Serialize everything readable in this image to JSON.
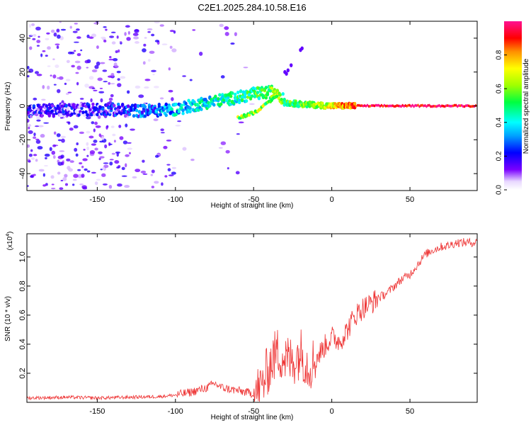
{
  "title": "C2E1.2025.284.10.58.E16",
  "chart_data": [
    {
      "type": "heatmap",
      "title": "C2E1.2025.284.10.58.E16",
      "xlabel": "Height of straight line (km)",
      "ylabel": "Frequency (Hz)",
      "xlim": [
        -195,
        93
      ],
      "ylim": [
        -50,
        50
      ],
      "xticks": [
        -150,
        -100,
        -50,
        0,
        50
      ],
      "xtick_labels": [
        "-150",
        "-100",
        "-50",
        "0",
        "50"
      ],
      "yticks": [
        -40,
        -20,
        0,
        20,
        40
      ],
      "ytick_labels": [
        "-40",
        "-20",
        "0",
        "20",
        "40"
      ],
      "colorbar": {
        "label": "Normalized spectral amplitude",
        "range": [
          0,
          1
        ],
        "ticks": [
          0.0,
          0.2,
          0.4,
          0.6,
          0.8
        ],
        "tick_labels": [
          "0.0",
          "0.2",
          "0.4",
          "0.6",
          "0.8"
        ]
      },
      "ridge": {
        "description_points_x": [
          -195,
          -150,
          -120,
          -100,
          -80,
          -60,
          -50,
          -40,
          -35,
          -30,
          -20,
          -10,
          0,
          10,
          20,
          93
        ],
        "frequency_hz": [
          -3,
          -2,
          -3,
          -2,
          2,
          5,
          7,
          8,
          9,
          2,
          1,
          0.5,
          0,
          0,
          0,
          0
        ],
        "amplitude": [
          0.15,
          0.15,
          0.25,
          0.35,
          0.4,
          0.45,
          0.5,
          0.55,
          0.6,
          0.5,
          0.55,
          0.6,
          0.7,
          0.8,
          0.95,
          0.98
        ]
      },
      "branch": {
        "x": [
          -60,
          -50,
          -40,
          -33
        ],
        "frequency_hz": [
          -7,
          -4,
          2,
          8
        ]
      }
    },
    {
      "type": "line",
      "xlabel": "Height of straight line (km)",
      "ylabel": "SNR (10 * v/v)",
      "multiplier": "(x10",
      "multiplier_exp": "4",
      "multiplier_close": ")",
      "xlim": [
        -195,
        93
      ],
      "ylim": [
        0,
        1.16
      ],
      "xticks": [
        -150,
        -100,
        -50,
        0,
        50
      ],
      "xtick_labels": [
        "-150",
        "-100",
        "-50",
        "0",
        "50"
      ],
      "yticks": [
        0.2,
        0.4,
        0.6,
        0.8,
        1.0
      ],
      "ytick_labels": [
        "0.2",
        "0.4",
        "0.6",
        "0.8",
        "1.0"
      ],
      "series": [
        {
          "name": "SNR",
          "color": "#ee3333",
          "x": [
            -195,
            -170,
            -150,
            -130,
            -110,
            -100,
            -90,
            -80,
            -75,
            -70,
            -60,
            -50,
            -45,
            -40,
            -35,
            -30,
            -25,
            -20,
            -15,
            -10,
            -5,
            0,
            5,
            10,
            15,
            20,
            25,
            30,
            35,
            40,
            45,
            50,
            55,
            60,
            65,
            70,
            75,
            80,
            85,
            93
          ],
          "y": [
            0.03,
            0.035,
            0.03,
            0.035,
            0.04,
            0.05,
            0.07,
            0.1,
            0.13,
            0.1,
            0.08,
            0.06,
            0.1,
            0.25,
            0.35,
            0.3,
            0.28,
            0.35,
            0.25,
            0.3,
            0.38,
            0.45,
            0.42,
            0.5,
            0.6,
            0.65,
            0.68,
            0.72,
            0.75,
            0.8,
            0.85,
            0.88,
            0.95,
            1.02,
            1.05,
            1.07,
            1.08,
            1.1,
            1.1,
            1.1
          ]
        }
      ]
    }
  ]
}
